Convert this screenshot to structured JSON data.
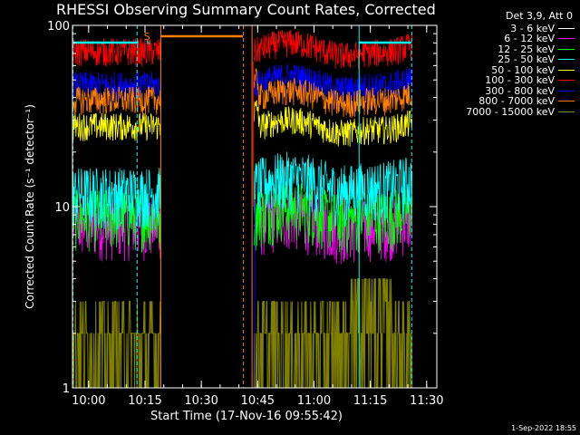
{
  "chart_data": {
    "type": "line",
    "title": "RHESSI Observing Summary Count Rates, Corrected",
    "xlabel": "Start Time (17-Nov-16 09:55:42)",
    "ylabel": "Corrected Count Rate (s⁻¹ detector⁻¹)",
    "yscale": "log",
    "ylim": [
      1,
      100
    ],
    "xlim_minutes": [
      0,
      97
    ],
    "x_unit": "minutes after 17-Nov-16 09:55:42",
    "ytick_labels": [
      "1",
      "10",
      "100"
    ],
    "xtick_labels": [
      "10:00",
      "10:15",
      "10:30",
      "10:45",
      "11:00",
      "11:15",
      "11:30"
    ],
    "xtick_minutes": [
      4.3,
      19.3,
      34.3,
      49.3,
      64.3,
      79.3,
      94.3
    ],
    "legend_header": "Det 3,9, Att 0",
    "legend_placement": "right",
    "data_gaps_minutes": [
      [
        23.5,
        48.3
      ]
    ],
    "series": [
      {
        "name": "3 - 6 keV",
        "color": "#000000",
        "pre_mean": 8,
        "post_mean": 8
      },
      {
        "name": "6 - 12 keV",
        "color": "#ff00ff",
        "pre_mean": 8,
        "post_mean": 8
      },
      {
        "name": "12 - 25 keV",
        "color": "#00ff00",
        "pre_mean": 9,
        "post_mean": 9
      },
      {
        "name": "25 - 50 keV",
        "color": "#00ffff",
        "pre_mean": 12,
        "post_mean": 13
      },
      {
        "name": "50 - 100 keV",
        "color": "#ffff00",
        "pre_mean": 28,
        "post_mean": 27
      },
      {
        "name": "100 - 300 keV",
        "color": "#ff0000",
        "pre_mean": 72,
        "post_mean": 72
      },
      {
        "name": "300 - 800 keV",
        "color": "#0000ff",
        "pre_mean": 47,
        "post_mean": 47
      },
      {
        "name": "800 - 7000 keV",
        "color": "#ff7f00",
        "pre_mean": 39,
        "post_mean": 39
      },
      {
        "name": "7000 - 15000 keV",
        "color": "#808000",
        "pre_mean": 2,
        "post_mean": 2
      }
    ],
    "flag_label": "S",
    "flag_color": "#ff7f00",
    "saa_color": "#00ffff",
    "eclipse_color": "#ff7f00"
  },
  "footer": "1-Sep-2022 18:55"
}
